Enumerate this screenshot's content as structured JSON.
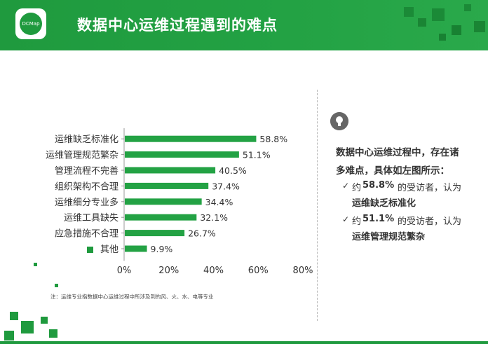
{
  "header": {
    "title": "数据中心运维过程遇到的难点",
    "logo_text": "DCMap"
  },
  "colors": {
    "accent": "#1f9a3e",
    "bar": "#23a244",
    "text": "#333333"
  },
  "chart_data": {
    "type": "bar",
    "orientation": "horizontal",
    "categories": [
      "运维缺乏标准化",
      "运维管理规范繁杂",
      "管理流程不完善",
      "组织架构不合理",
      "运维细分专业多",
      "运维工具缺失",
      "应急措施不合理",
      "其他"
    ],
    "values": [
      58.8,
      51.1,
      40.5,
      37.4,
      34.4,
      32.1,
      26.7,
      9.9
    ],
    "value_labels": [
      "58.8%",
      "51.1%",
      "40.5%",
      "37.4%",
      "34.4%",
      "32.1%",
      "26.7%",
      "9.9%"
    ],
    "xlim": [
      0,
      80
    ],
    "xticks": [
      "0%",
      "20%",
      "40%",
      "60%",
      "80%"
    ],
    "grid": false
  },
  "panel": {
    "intro_line1": "数据中心运维过程中，存在诸",
    "intro_line2": "多难点，具体如左图所示：",
    "item1_prefix": "约",
    "item1_value": "58.8%",
    "item1_suffix": "的受访者，认为",
    "item1_topic": "运维缺乏标准化",
    "item2_prefix": "约",
    "item2_value": "51.1%",
    "item2_suffix": "的受访者，认为",
    "item2_topic": "运维管理规范繁杂",
    "check": "✓"
  },
  "note": "注：运维专业指数据中心运维过程中所涉及到的风、火、水、电等专业"
}
